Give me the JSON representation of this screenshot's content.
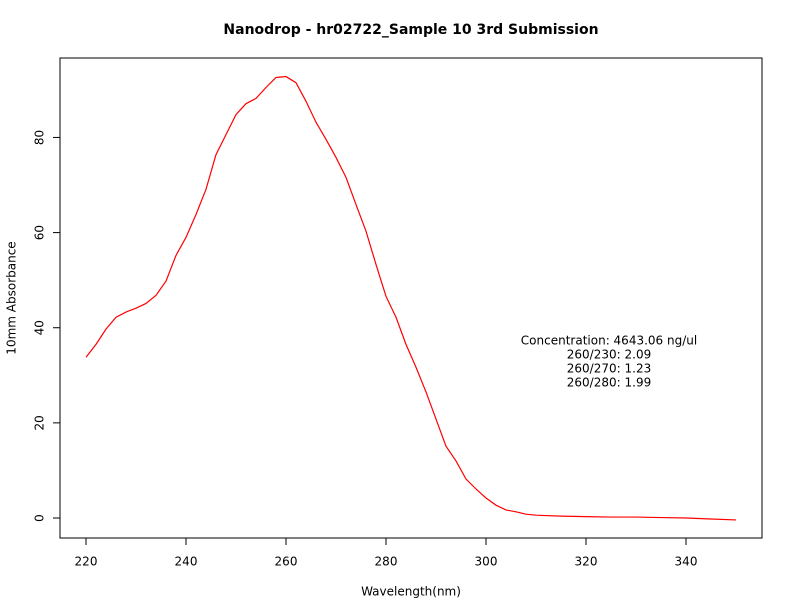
{
  "chart_data": {
    "type": "line",
    "title": "Nanodrop - hr02722_Sample 10 3rd Submission",
    "x_label": "Wavelength(nm)",
    "y_label": "10mm Absorbance",
    "x": [
      220,
      222,
      224,
      226,
      228,
      230,
      232,
      234,
      236,
      238,
      240,
      242,
      244,
      246,
      248,
      250,
      252,
      254,
      256,
      258,
      260,
      262,
      264,
      266,
      268,
      270,
      272,
      274,
      276,
      278,
      280,
      282,
      284,
      286,
      288,
      290,
      292,
      294,
      296,
      298,
      300,
      302,
      304,
      306,
      308,
      310,
      315,
      320,
      325,
      330,
      335,
      340,
      345,
      350
    ],
    "series": [
      {
        "name": "Absorbance",
        "color": "#ff0000",
        "values": [
          33.8,
          36.5,
          39.7,
          42.2,
          43.3,
          44.1,
          45.1,
          46.8,
          49.8,
          55.2,
          59.0,
          63.8,
          69.1,
          76.4,
          80.6,
          84.8,
          87.1,
          88.2,
          90.5,
          92.6,
          92.8,
          91.5,
          87.6,
          83.2,
          79.6,
          75.8,
          71.6,
          65.9,
          60.3,
          53.3,
          46.6,
          42.2,
          36.5,
          31.7,
          26.5,
          20.8,
          15.1,
          12.0,
          8.2,
          6.1,
          4.2,
          2.7,
          1.7,
          1.3,
          0.8,
          0.6,
          0.4,
          0.3,
          0.2,
          0.2,
          0.1,
          0.0,
          -0.2,
          -0.4
        ]
      }
    ],
    "xlim": [
      214.8,
      355.2
    ],
    "ylim": [
      -4.2,
      96.7
    ],
    "xticks": [
      220,
      240,
      260,
      280,
      300,
      320,
      340
    ],
    "yticks": [
      0,
      20,
      40,
      60,
      80
    ],
    "grid": false,
    "annotations": [
      "Concentration: 4643.06 ng/ul",
      "260/230: 2.09",
      "260/270: 1.23",
      "260/280: 1.99"
    ]
  }
}
